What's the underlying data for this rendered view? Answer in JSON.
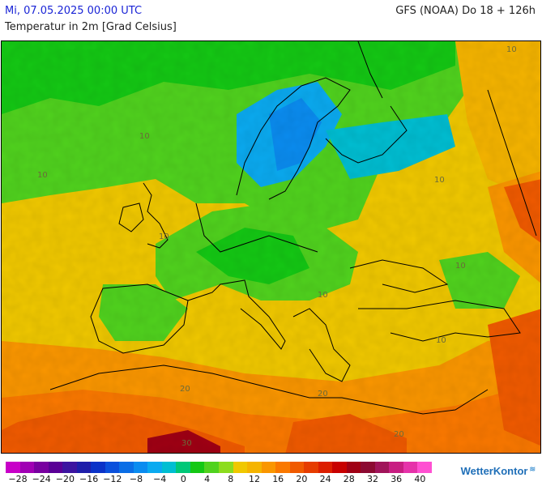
{
  "header": {
    "date": "Mi, 07.05.2025 00:00 UTC",
    "model": "GFS (NOAA) Do 18 + 126h",
    "parameter": "Temperatur in 2m [Grad Celsius]"
  },
  "map": {
    "region": "Europe",
    "isotherm_labels": [
      {
        "text": "10"
      },
      {
        "text": "10"
      },
      {
        "text": "10"
      },
      {
        "text": "10"
      },
      {
        "text": "10"
      },
      {
        "text": "10"
      },
      {
        "text": "10"
      },
      {
        "text": "10"
      },
      {
        "text": "20"
      },
      {
        "text": "20"
      },
      {
        "text": "20"
      },
      {
        "text": "30"
      }
    ]
  },
  "legend": {
    "colors": [
      "#c800c8",
      "#a000b4",
      "#7800a0",
      "#5a0096",
      "#3c14a0",
      "#1e1eaa",
      "#0a32c8",
      "#0a50dc",
      "#0a6ee6",
      "#0a8cf0",
      "#0aaaf0",
      "#00bed2",
      "#00c878",
      "#14c814",
      "#50d21e",
      "#8cdc1e",
      "#f0c800",
      "#f5b400",
      "#fa9600",
      "#fa7800",
      "#f05a00",
      "#e63c00",
      "#dc1e00",
      "#c80000",
      "#a00014",
      "#8c0a32",
      "#a0145a",
      "#c81e82",
      "#e632aa",
      "#ff50d2"
    ],
    "ticks": [
      "−28",
      "−24",
      "−20",
      "−16",
      "−12",
      "−8",
      "−4",
      "0",
      "4",
      "8",
      "12",
      "16",
      "20",
      "24",
      "28",
      "32",
      "36",
      "40"
    ]
  },
  "logo": {
    "text": "WetterKontor",
    "waves": "≋"
  }
}
